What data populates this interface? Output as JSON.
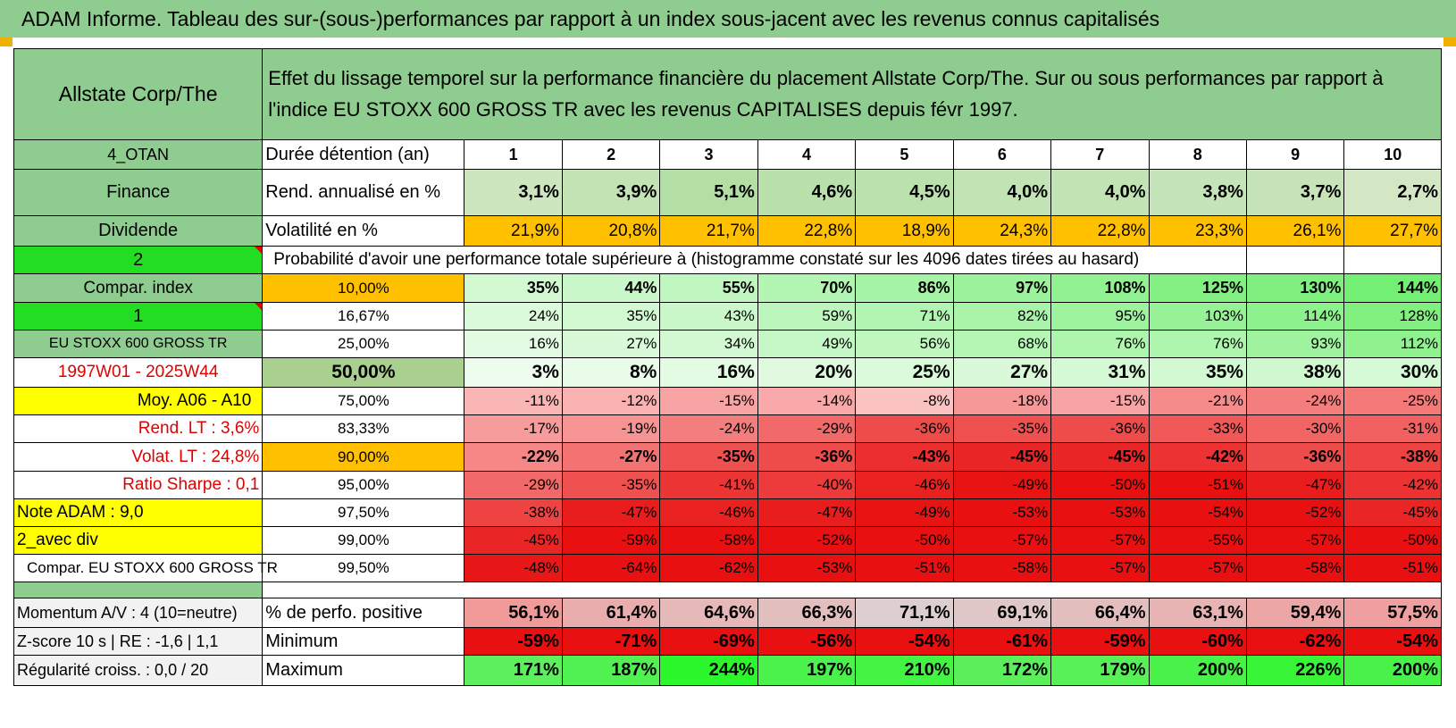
{
  "title": "ADAM Informe. Tableau des sur-(sous-)performances par rapport à un index sous-jacent avec les revenus connus capitalisés",
  "header": {
    "company": "Allstate Corp/The",
    "description": "Effet du lissage temporel sur la performance financière du placement Allstate Corp/The. Sur ou sous performances par rapport à l'indice EU STOXX 600 GROSS TR avec les revenus CAPITALISES depuis févr 1997."
  },
  "side": {
    "code": "4_OTAN",
    "sector": "Finance",
    "dividende": "Dividende",
    "n2": "2",
    "compar_index": "Compar. index",
    "n1": "1",
    "index_name": "EU STOXX 600 GROSS TR",
    "period": "1997W01 - 2025W44",
    "moy": "Moy. A06 - A10",
    "rend_lt": "Rend. LT :    3,6%",
    "volat_lt": "Volat. LT :    24,8%",
    "sharpe": "Ratio Sharpe :    0,1",
    "note": "Note ADAM : 9,0",
    "avec_div": "2_avec div",
    "compar_full": "Compar. EU STOXX 600 GROSS TR",
    "momentum": "Momentum A/V : 4 (10=neutre)",
    "zscore": "Z-score 10 s | RE : -1,6 | 1,1",
    "regularite": "Régularité croiss. : 0,0 / 20"
  },
  "labels": {
    "duree": "Durée détention (an)",
    "rend": "Rend. annualisé en %",
    "volat": "Volatilité en %",
    "proba": "Probabilité d'avoir une performance totale supérieure à (histogramme constaté sur les 4096 dates tirées au hasard)",
    "pos": "% de perfo. positive",
    "min": "Minimum",
    "max": "Maximum"
  },
  "years": [
    "1",
    "2",
    "3",
    "4",
    "5",
    "6",
    "7",
    "8",
    "9",
    "10"
  ],
  "rend": [
    "3,1%",
    "3,9%",
    "5,1%",
    "4,6%",
    "4,5%",
    "4,0%",
    "4,0%",
    "3,8%",
    "3,7%",
    "2,7%"
  ],
  "volat": [
    "21,9%",
    "20,8%",
    "21,7%",
    "22,8%",
    "18,9%",
    "24,3%",
    "22,8%",
    "23,3%",
    "26,1%",
    "27,7%"
  ],
  "percentiles": [
    {
      "p": "10,00%",
      "v": [
        "35%",
        "44%",
        "55%",
        "70%",
        "86%",
        "97%",
        "108%",
        "125%",
        "130%",
        "144%"
      ]
    },
    {
      "p": "16,67%",
      "v": [
        "24%",
        "35%",
        "43%",
        "59%",
        "71%",
        "82%",
        "95%",
        "103%",
        "114%",
        "128%"
      ]
    },
    {
      "p": "25,00%",
      "v": [
        "16%",
        "27%",
        "34%",
        "49%",
        "56%",
        "68%",
        "76%",
        "76%",
        "93%",
        "112%"
      ]
    },
    {
      "p": "50,00%",
      "v": [
        "3%",
        "8%",
        "16%",
        "20%",
        "25%",
        "27%",
        "31%",
        "35%",
        "38%",
        "30%"
      ]
    },
    {
      "p": "75,00%",
      "v": [
        "-11%",
        "-12%",
        "-15%",
        "-14%",
        "-8%",
        "-18%",
        "-15%",
        "-21%",
        "-24%",
        "-25%"
      ]
    },
    {
      "p": "83,33%",
      "v": [
        "-17%",
        "-19%",
        "-24%",
        "-29%",
        "-36%",
        "-35%",
        "-36%",
        "-33%",
        "-30%",
        "-31%"
      ]
    },
    {
      "p": "90,00%",
      "v": [
        "-22%",
        "-27%",
        "-35%",
        "-36%",
        "-43%",
        "-45%",
        "-45%",
        "-42%",
        "-36%",
        "-38%"
      ]
    },
    {
      "p": "95,00%",
      "v": [
        "-29%",
        "-35%",
        "-41%",
        "-40%",
        "-46%",
        "-49%",
        "-50%",
        "-51%",
        "-47%",
        "-42%"
      ]
    },
    {
      "p": "97,50%",
      "v": [
        "-38%",
        "-47%",
        "-46%",
        "-47%",
        "-49%",
        "-53%",
        "-53%",
        "-54%",
        "-52%",
        "-45%"
      ]
    },
    {
      "p": "99,00%",
      "v": [
        "-45%",
        "-59%",
        "-58%",
        "-52%",
        "-50%",
        "-57%",
        "-57%",
        "-55%",
        "-57%",
        "-50%"
      ]
    },
    {
      "p": "99,50%",
      "v": [
        "-48%",
        "-64%",
        "-62%",
        "-53%",
        "-51%",
        "-58%",
        "-57%",
        "-57%",
        "-58%",
        "-51%"
      ]
    }
  ],
  "positive": [
    "56,1%",
    "61,4%",
    "64,6%",
    "66,3%",
    "71,1%",
    "69,1%",
    "66,4%",
    "63,1%",
    "59,4%",
    "57,5%"
  ],
  "minimum": [
    "-59%",
    "-71%",
    "-69%",
    "-56%",
    "-54%",
    "-61%",
    "-59%",
    "-60%",
    "-62%",
    "-54%"
  ],
  "maximum": [
    "171%",
    "187%",
    "244%",
    "197%",
    "210%",
    "172%",
    "179%",
    "200%",
    "226%",
    "200%"
  ],
  "colors": {
    "header_green": "#8fcc8f",
    "bright_green": "#22dd22",
    "orange": "#ffc000",
    "yellow": "#ffff00",
    "red_text": "#e00000",
    "rend_green": "#c6e0b4"
  }
}
